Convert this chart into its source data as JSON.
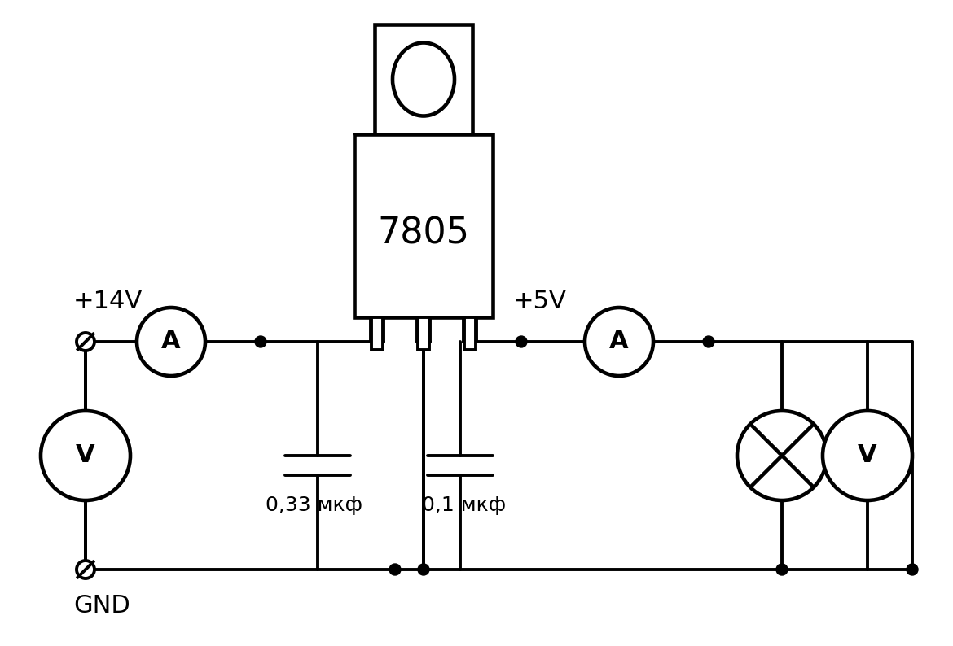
{
  "bg_color": "#ffffff",
  "line_color": "#000000",
  "lw": 2.8,
  "fig_width": 11.7,
  "fig_height": 7.94,
  "dpi": 100,
  "ic_label": "7805",
  "cap1_label": "0,33 мкф",
  "cap2_label": "0,1 мкф",
  "label_14v": "+14V",
  "label_5v": "+5V",
  "label_gnd": "GND",
  "label_A": "A",
  "label_V": "V"
}
